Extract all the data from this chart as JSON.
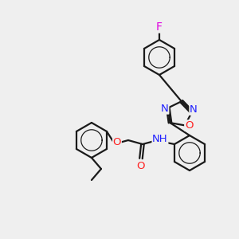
{
  "bg_color": "#efefef",
  "bond_color": "#1a1a1a",
  "bond_width": 1.6,
  "atom_colors": {
    "N": "#2020ff",
    "O": "#ff2020",
    "F": "#e000e0",
    "C": "#1a1a1a"
  },
  "font_size": 9.5,
  "fig_width": 3.0,
  "fig_height": 3.0,
  "dpi": 100
}
